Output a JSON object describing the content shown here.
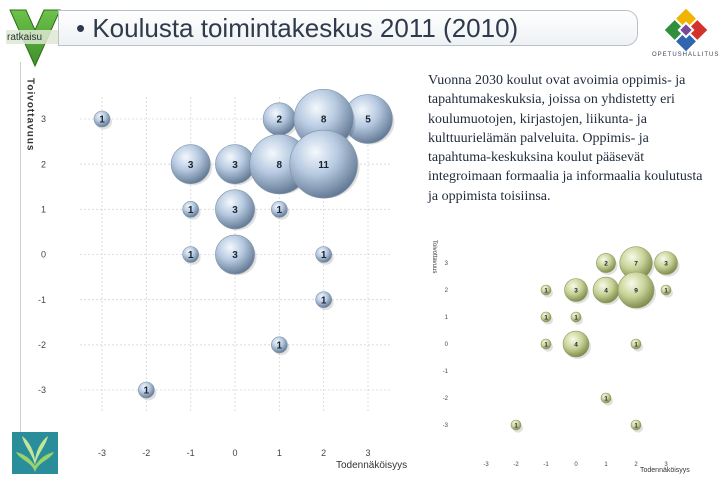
{
  "badge": {
    "label": "ratkaisu"
  },
  "title": "• Koulusta toimintakeskus 2011 (2010)",
  "logo": {
    "name": "opetushallitus-logo",
    "text": "OPETUSHALLITUS"
  },
  "description": "Vuonna 2030 koulut ovat avoimia oppimis- ja tapahtumakeskuksia, joissa on yhdistetty eri koulumuotojen, kirjastojen, liikunta- ja kulttuurielämän palveluita. Oppimis- ja tapahtuma-keskuksina koulut pääsevät integroimaan formaalia ja informaalia koulutusta ja oppimista toisiinsa.",
  "colors": {
    "main_bubble": "#a9bfdb",
    "side_bubble": "#c8d38e",
    "grid": "#d6d6d6"
  },
  "chart_data": [
    {
      "type": "scatter",
      "variant": "bubble",
      "xlabel": "Todennäköisyys",
      "ylabel": "Toivottavuus",
      "xlim": [
        -3,
        3
      ],
      "ylim": [
        -3,
        3
      ],
      "xticks": [
        "-3",
        "-2",
        "-1",
        "0",
        "1",
        "2",
        "3"
      ],
      "yticks": [
        "3",
        "2",
        "1",
        "0",
        "-1",
        "-2",
        "-3"
      ],
      "grid": true,
      "points": [
        {
          "x": -3,
          "y": 3,
          "count": 1
        },
        {
          "x": 1,
          "y": 3,
          "count": 2
        },
        {
          "x": 2,
          "y": 3,
          "count": 8
        },
        {
          "x": 3,
          "y": 3,
          "count": 5
        },
        {
          "x": -1,
          "y": 2,
          "count": 3
        },
        {
          "x": 0,
          "y": 2,
          "count": 3
        },
        {
          "x": 1,
          "y": 2,
          "count": 8
        },
        {
          "x": 2,
          "y": 2,
          "count": 11
        },
        {
          "x": -1,
          "y": 1,
          "count": 1
        },
        {
          "x": 0,
          "y": 1,
          "count": 3
        },
        {
          "x": 1,
          "y": 1,
          "count": 1
        },
        {
          "x": -1,
          "y": 0,
          "count": 1
        },
        {
          "x": 0,
          "y": 0,
          "count": 3
        },
        {
          "x": 2,
          "y": 0,
          "count": 1
        },
        {
          "x": 2,
          "y": -1,
          "count": 1
        },
        {
          "x": 1,
          "y": -2,
          "count": 1
        },
        {
          "x": -2,
          "y": -3,
          "count": 1
        }
      ]
    },
    {
      "type": "scatter",
      "variant": "bubble",
      "xlabel": "Todennäköisyys",
      "ylabel": "Toivottavuus",
      "xlim": [
        -3,
        3
      ],
      "ylim": [
        -3,
        3
      ],
      "xticks": [
        "-3",
        "-2",
        "-1",
        "0",
        "1",
        "2",
        "3"
      ],
      "yticks": [
        "3",
        "2",
        "1",
        "0",
        "-1",
        "-2",
        "-3"
      ],
      "grid": false,
      "points": [
        {
          "x": 1,
          "y": 3,
          "count": 2
        },
        {
          "x": 2,
          "y": 3,
          "count": 7
        },
        {
          "x": 3,
          "y": 3,
          "count": 3
        },
        {
          "x": -1,
          "y": 2,
          "count": 1
        },
        {
          "x": 0,
          "y": 2,
          "count": 3
        },
        {
          "x": 1,
          "y": 2,
          "count": 4
        },
        {
          "x": 2,
          "y": 2,
          "count": 9
        },
        {
          "x": 3,
          "y": 2,
          "count": 1
        },
        {
          "x": -1,
          "y": 1,
          "count": 1
        },
        {
          "x": 0,
          "y": 1,
          "count": 1
        },
        {
          "x": -1,
          "y": 0,
          "count": 1
        },
        {
          "x": 0,
          "y": 0,
          "count": 4
        },
        {
          "x": 2,
          "y": 0,
          "count": 1
        },
        {
          "x": 1,
          "y": -2,
          "count": 1
        },
        {
          "x": -2,
          "y": -3,
          "count": 1
        },
        {
          "x": 2,
          "y": -3,
          "count": 1
        }
      ]
    }
  ]
}
